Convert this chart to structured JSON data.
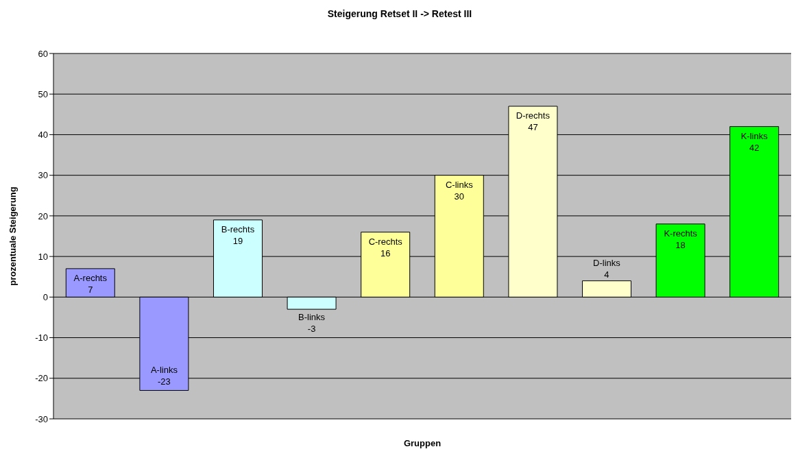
{
  "chart_data": {
    "type": "bar",
    "title": "Steigerung Retset II -> Retest III",
    "xlabel": "Gruppen",
    "ylabel": "prozentuale Steigerung",
    "categories": [
      "A-rechts",
      "A-links",
      "B-rechts",
      "B-links",
      "C-rechts",
      "C-links",
      "D-rechts",
      "D-links",
      "K-rechts",
      "K-links"
    ],
    "values": [
      7,
      -23,
      19,
      -3,
      16,
      30,
      47,
      4,
      18,
      42
    ],
    "colors": [
      "#9999ff",
      "#9999ff",
      "#ccffff",
      "#ccffff",
      "#ffff99",
      "#ffff99",
      "#ffffcc",
      "#ffffcc",
      "#00ff00",
      "#00ff00"
    ],
    "ylim": [
      -30,
      60
    ],
    "yticks": [
      -30,
      -20,
      -10,
      0,
      10,
      20,
      30,
      40,
      50,
      60
    ],
    "grid": "y",
    "data_labels": true,
    "tick_labels": "y"
  }
}
